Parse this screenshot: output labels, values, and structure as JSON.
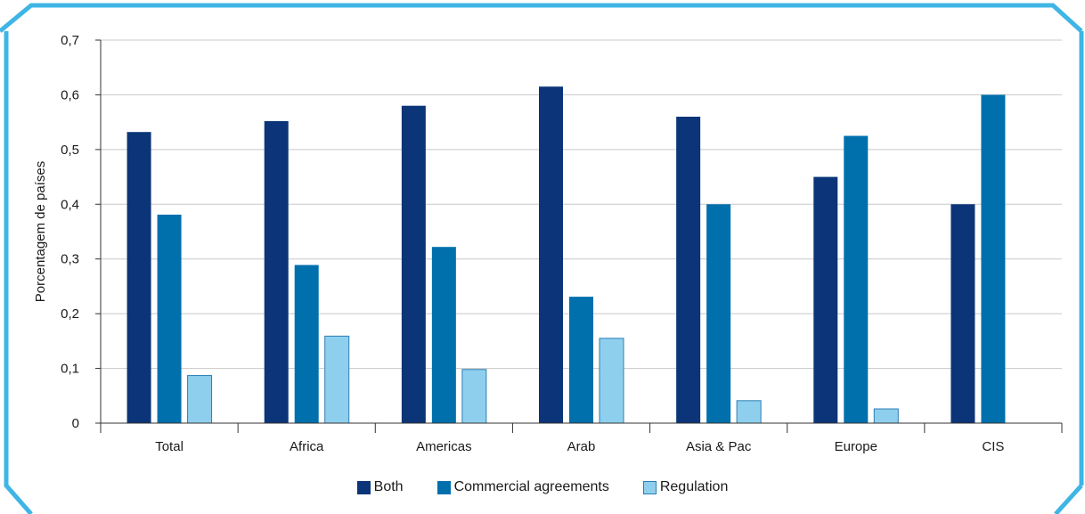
{
  "chart_data": {
    "type": "bar",
    "title": "",
    "xlabel": "",
    "ylabel": "Porcentagem de países",
    "ylim": [
      0,
      0.7
    ],
    "yticks": [
      0,
      0.1,
      0.2,
      0.3,
      0.4,
      0.5,
      0.6,
      0.7
    ],
    "ytick_labels": [
      "0",
      "0,1",
      "0,2",
      "0,3",
      "0,4",
      "0,5",
      "0,6",
      "0,7"
    ],
    "categories": [
      "Total",
      "Africa",
      "Americas",
      "Arab",
      "Asia & Pac",
      "Europe",
      "CIS"
    ],
    "series": [
      {
        "name": "Both",
        "color": "#0b3578",
        "values": [
          0.532,
          0.552,
          0.58,
          0.615,
          0.56,
          0.45,
          0.4
        ]
      },
      {
        "name": "Commercial agreements",
        "color": "#0070ad",
        "values": [
          0.381,
          0.289,
          0.322,
          0.231,
          0.4,
          0.525,
          0.6
        ]
      },
      {
        "name": "Regulation",
        "color": "#8fcfee",
        "values": [
          0.087,
          0.159,
          0.098,
          0.155,
          0.041,
          0.026,
          null
        ]
      }
    ],
    "grid": true,
    "legend_position": "bottom"
  },
  "frame_color": "#3fb5e5"
}
